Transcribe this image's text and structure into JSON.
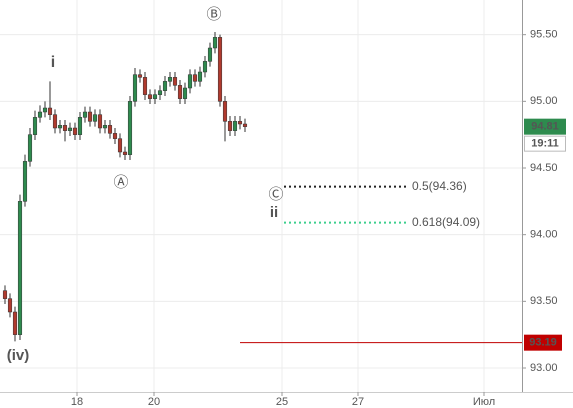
{
  "chart_data": {
    "type": "candlestick",
    "x": [
      1,
      2,
      3,
      4,
      5,
      6,
      7,
      8,
      9,
      10,
      11,
      12,
      13,
      14,
      15,
      16,
      17,
      18,
      19,
      20,
      21,
      22,
      23,
      24,
      25,
      26,
      27,
      28,
      29,
      30,
      31,
      32,
      33,
      34,
      35,
      36,
      37,
      38,
      39,
      40,
      41,
      42,
      43,
      44,
      45,
      46,
      47,
      48,
      49
    ],
    "open": [
      93.58,
      93.52,
      93.42,
      93.25,
      94.25,
      94.55,
      94.75,
      94.88,
      94.92,
      94.95,
      94.9,
      94.8,
      94.82,
      94.78,
      94.8,
      94.75,
      94.88,
      94.92,
      94.85,
      94.9,
      94.8,
      94.82,
      94.76,
      94.72,
      94.62,
      94.6,
      95.0,
      95.2,
      95.18,
      95.05,
      95.02,
      95.05,
      95.08,
      95.15,
      95.18,
      95.12,
      95.02,
      95.1,
      95.2,
      95.15,
      95.22,
      95.3,
      95.4,
      95.48,
      95.0,
      94.85,
      94.78,
      94.85,
      94.83
    ],
    "high": [
      93.62,
      93.56,
      93.46,
      94.3,
      94.6,
      94.8,
      94.93,
      94.97,
      95.0,
      95.15,
      94.94,
      94.86,
      94.86,
      94.84,
      94.84,
      94.92,
      94.96,
      94.96,
      94.94,
      94.94,
      94.86,
      94.86,
      94.8,
      94.76,
      94.66,
      95.04,
      95.25,
      95.24,
      95.22,
      95.09,
      95.09,
      95.12,
      95.19,
      95.22,
      95.22,
      95.16,
      95.14,
      95.24,
      95.24,
      95.26,
      95.34,
      95.44,
      95.52,
      95.5,
      95.04,
      94.89,
      94.89,
      94.89,
      94.87
    ],
    "low": [
      93.48,
      93.38,
      93.2,
      93.21,
      94.21,
      94.51,
      94.71,
      94.84,
      94.88,
      94.86,
      94.76,
      94.76,
      94.7,
      94.74,
      94.71,
      94.71,
      94.84,
      94.81,
      94.81,
      94.76,
      94.76,
      94.72,
      94.68,
      94.58,
      94.56,
      94.56,
      94.96,
      95.14,
      95.01,
      94.98,
      94.98,
      95.01,
      95.04,
      95.11,
      95.08,
      94.98,
      94.98,
      95.06,
      95.11,
      95.11,
      95.18,
      95.26,
      95.36,
      94.96,
      94.7,
      94.74,
      94.74,
      94.79,
      94.77
    ],
    "close": [
      93.52,
      93.42,
      93.25,
      94.25,
      94.55,
      94.75,
      94.88,
      94.92,
      94.95,
      94.9,
      94.8,
      94.82,
      94.78,
      94.8,
      94.75,
      94.88,
      94.92,
      94.85,
      94.9,
      94.8,
      94.82,
      94.76,
      94.72,
      94.62,
      94.6,
      95.0,
      95.2,
      95.18,
      95.05,
      95.02,
      95.05,
      95.08,
      95.15,
      95.18,
      95.12,
      95.02,
      95.1,
      95.2,
      95.15,
      95.22,
      95.3,
      95.4,
      95.48,
      95.0,
      94.85,
      94.78,
      94.85,
      94.83,
      94.81
    ],
    "up_color": "#2e8b4e",
    "down_color": "#b03a2e",
    "xlim": [
      0,
      104.4
    ],
    "xticks": [
      {
        "value": 15.4,
        "label": "18"
      },
      {
        "value": 30.8,
        "label": "20"
      },
      {
        "value": 56.4,
        "label": "25"
      },
      {
        "value": 71.6,
        "label": "27"
      },
      {
        "value": 96.8,
        "label": "Июл"
      }
    ],
    "ylim": [
      92.82,
      95.76
    ],
    "yticks": [
      {
        "value": 93.0,
        "label": "93.00"
      },
      {
        "value": 93.5,
        "label": "93.50"
      },
      {
        "value": 94.0,
        "label": "94.00"
      },
      {
        "value": 94.5,
        "label": "94.50"
      },
      {
        "value": 95.0,
        "label": "95.00"
      },
      {
        "value": 95.5,
        "label": "95.50"
      }
    ],
    "grid": true,
    "last_price": 94.81,
    "last_time": "19:11",
    "level_line": {
      "value": 93.19,
      "color": "#c00000"
    },
    "fib_levels": {
      "values": [
        94.36,
        94.09
      ],
      "value_labels": [
        "0.5(94.36)",
        "0.618(94.09)"
      ],
      "colors": [
        "#222222",
        "#3ccf8e"
      ]
    },
    "annotations": [
      "i",
      "Ⓐ",
      "Ⓑ",
      "Ⓒ",
      "ii",
      "(iv)"
    ]
  }
}
